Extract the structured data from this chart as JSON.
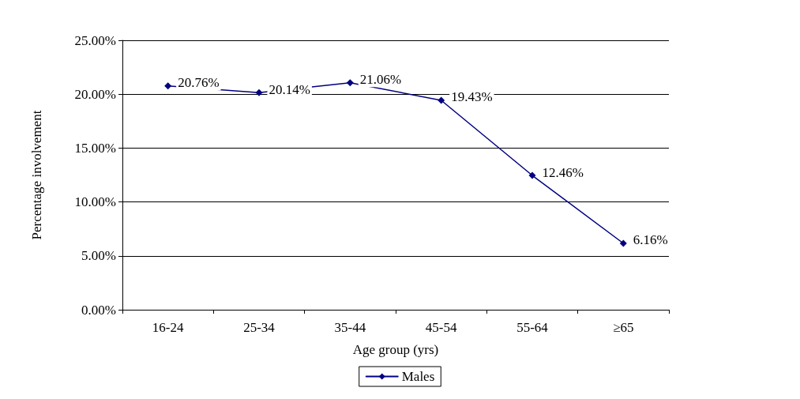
{
  "chart_data": {
    "type": "line",
    "xlabel": "Age group (yrs)",
    "ylabel": "Percentage involvement",
    "categories": [
      "16-24",
      "25-34",
      "35-44",
      "45-54",
      "55-64",
      "≥65"
    ],
    "series": [
      {
        "name": "Males",
        "color": "#000080",
        "values": [
          20.76,
          20.14,
          21.06,
          19.43,
          12.46,
          6.16
        ],
        "value_labels": [
          "20.76%",
          "20.14%",
          "21.06%",
          "19.43%",
          "12.46%",
          "6.16%"
        ]
      }
    ],
    "ylim": [
      0,
      25
    ],
    "yticks": [
      {
        "value": 0,
        "label": "0.00%"
      },
      {
        "value": 5,
        "label": "5.00%"
      },
      {
        "value": 10,
        "label": "10.00%"
      },
      {
        "value": 15,
        "label": "15.00%"
      },
      {
        "value": 20,
        "label": "20.00%"
      },
      {
        "value": 25,
        "label": "25.00%"
      }
    ],
    "grid": "y",
    "legend": "bottom",
    "marker": "diamond",
    "line_style": "solid"
  }
}
